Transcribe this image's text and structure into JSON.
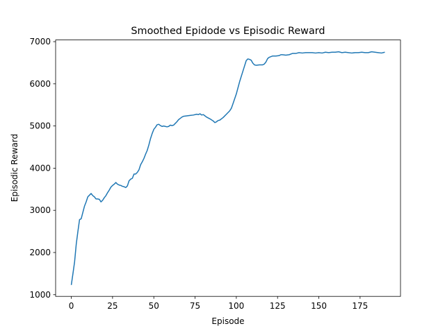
{
  "chart_data": {
    "type": "line",
    "title": "Smoothed Epidode vs Episodic Reward",
    "x_label": "Episode",
    "y_label": "Episodic Reward",
    "xlim": [
      -9.5,
      199.5
    ],
    "ylim": [
      960,
      7040
    ],
    "xticks": [
      0,
      25,
      50,
      75,
      100,
      125,
      150,
      175
    ],
    "yticks": [
      1000,
      2000,
      3000,
      4000,
      5000,
      6000,
      7000
    ],
    "grid": false,
    "x": [
      0,
      1,
      2,
      3,
      4,
      5,
      6,
      7,
      8,
      9,
      10,
      11,
      12,
      13,
      14,
      15,
      16,
      17,
      18,
      19,
      20,
      21,
      22,
      23,
      24,
      25,
      26,
      27,
      28,
      29,
      30,
      31,
      32,
      33,
      34,
      35,
      36,
      37,
      38,
      39,
      40,
      41,
      42,
      43,
      44,
      45,
      46,
      47,
      48,
      49,
      50,
      51,
      52,
      53,
      54,
      55,
      56,
      57,
      58,
      59,
      60,
      61,
      62,
      63,
      64,
      65,
      66,
      67,
      68,
      70,
      72,
      74,
      76,
      77,
      78,
      79,
      80,
      81,
      82,
      84,
      86,
      87,
      88,
      89,
      90,
      92,
      94,
      96,
      97,
      98,
      100,
      102,
      104,
      106,
      107,
      108,
      109,
      110,
      111,
      112,
      114,
      116,
      117,
      118,
      119,
      120,
      122,
      124,
      126,
      127,
      128,
      130,
      132,
      134,
      136,
      138,
      140,
      142,
      144,
      146,
      148,
      150,
      152,
      154,
      156,
      158,
      160,
      162,
      164,
      166,
      168,
      170,
      172,
      174,
      176,
      178,
      180,
      182,
      184,
      186,
      188,
      190
    ],
    "series": [
      {
        "name": "Episodic Reward",
        "color": "#1f77b4",
        "values": [
          1230,
          1500,
          1780,
          2200,
          2500,
          2780,
          2800,
          2950,
          3100,
          3200,
          3320,
          3360,
          3400,
          3350,
          3320,
          3270,
          3270,
          3260,
          3200,
          3240,
          3300,
          3350,
          3420,
          3480,
          3550,
          3590,
          3620,
          3660,
          3620,
          3600,
          3590,
          3570,
          3560,
          3540,
          3580,
          3700,
          3740,
          3760,
          3860,
          3860,
          3900,
          3960,
          4080,
          4150,
          4230,
          4330,
          4420,
          4550,
          4700,
          4820,
          4920,
          4970,
          5030,
          5040,
          5010,
          4990,
          5000,
          4990,
          4980,
          4990,
          5020,
          5010,
          5020,
          5060,
          5100,
          5150,
          5180,
          5210,
          5230,
          5240,
          5250,
          5260,
          5280,
          5270,
          5290,
          5260,
          5270,
          5240,
          5210,
          5170,
          5120,
          5080,
          5100,
          5130,
          5140,
          5200,
          5280,
          5360,
          5420,
          5530,
          5760,
          6050,
          6300,
          6550,
          6590,
          6580,
          6560,
          6490,
          6450,
          6440,
          6450,
          6450,
          6470,
          6520,
          6600,
          6630,
          6660,
          6660,
          6670,
          6690,
          6690,
          6680,
          6690,
          6720,
          6720,
          6740,
          6730,
          6740,
          6740,
          6740,
          6730,
          6740,
          6730,
          6750,
          6740,
          6750,
          6750,
          6760,
          6740,
          6750,
          6740,
          6730,
          6740,
          6740,
          6750,
          6740,
          6740,
          6760,
          6750,
          6740,
          6730,
          6750
        ]
      }
    ]
  }
}
